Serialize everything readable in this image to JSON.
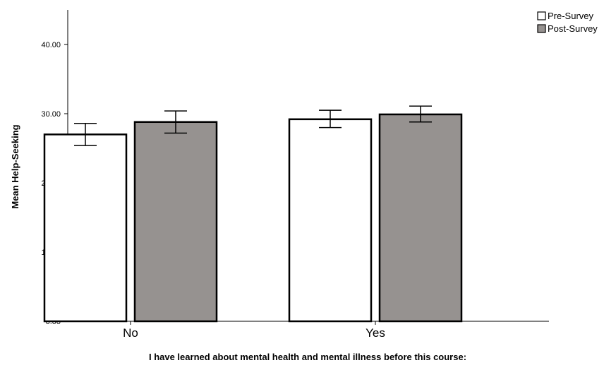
{
  "chart_data": {
    "type": "bar",
    "categories": [
      "No",
      "Yes"
    ],
    "series": [
      {
        "name": "Pre-Survey",
        "values": [
          27.0,
          29.2
        ],
        "error_low": [
          25.4,
          28.0
        ],
        "error_high": [
          28.6,
          30.5
        ],
        "color": "#ffffff"
      },
      {
        "name": "Post-Survey",
        "values": [
          28.8,
          29.9
        ],
        "error_low": [
          27.2,
          28.8
        ],
        "error_high": [
          30.4,
          31.1
        ],
        "color": "#969290"
      }
    ],
    "xlabel": "I have learned about mental health and mental illness before this course:",
    "ylabel": "Mean Help-Seeking",
    "ylim": [
      0,
      45
    ],
    "yticks": [
      0,
      10,
      20,
      30,
      40
    ],
    "ytick_labels": [
      "0.00",
      "10.00",
      "20.00",
      "30.00",
      "40.00"
    ],
    "grid": false,
    "legend_position": "top-right"
  }
}
